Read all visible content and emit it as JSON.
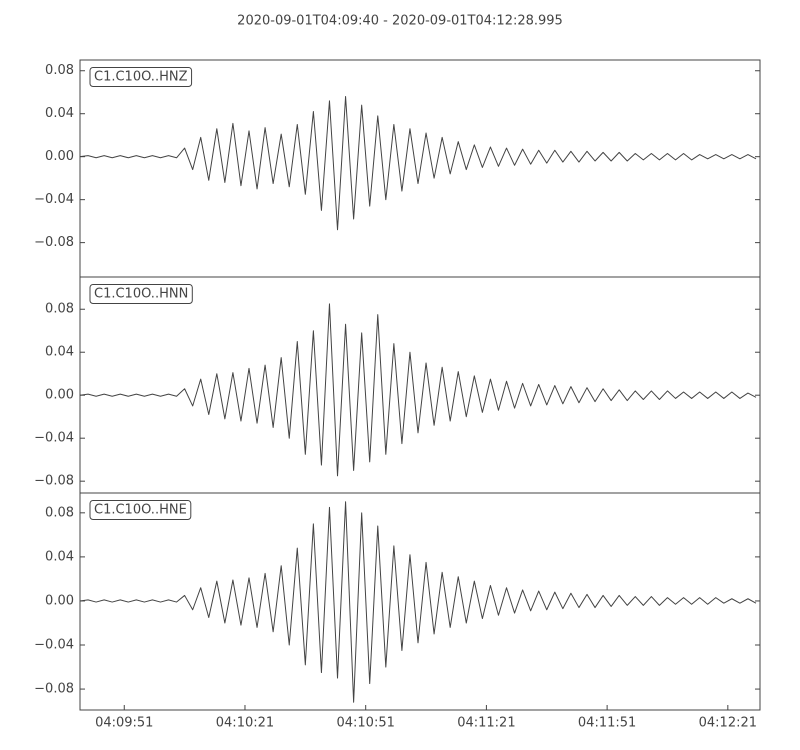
{
  "title": "2020-09-01T04:09:40  -  2020-09-01T04:12:28.995",
  "chart_data": [
    {
      "type": "line",
      "label": "C1.C10O..HNZ",
      "color": "#444444",
      "xlim": [
        0,
        168.995
      ],
      "ylim": [
        -0.112,
        0.09
      ],
      "yticks": [
        {
          "value": -0.08,
          "label": "−0.08"
        },
        {
          "value": -0.04,
          "label": "−0.04"
        },
        {
          "value": 0,
          "label": "0.00"
        },
        0.04,
        0.08
      ],
      "x": [
        0,
        2,
        4,
        6,
        8,
        10,
        12,
        14,
        16,
        18,
        20,
        22,
        24,
        26,
        28,
        30,
        32,
        34,
        36,
        38,
        40,
        42,
        44,
        46,
        48,
        50,
        52,
        54,
        56,
        58,
        60,
        62,
        64,
        66,
        68,
        70,
        72,
        74,
        76,
        78,
        80,
        82,
        84,
        86,
        88,
        90,
        92,
        94,
        96,
        98,
        100,
        102,
        104,
        106,
        108,
        110,
        112,
        114,
        116,
        118,
        120,
        122,
        124,
        126,
        128,
        130,
        132,
        134,
        136,
        138,
        140,
        142,
        144,
        146,
        148,
        150,
        152,
        154,
        156,
        158,
        160,
        162,
        164,
        166,
        168
      ],
      "values": [
        0,
        0.001,
        -0.001,
        0.001,
        -0.001,
        0.001,
        -0.001,
        0.001,
        -0.001,
        0.001,
        -0.001,
        0.001,
        -0.001,
        0.008,
        -0.012,
        0.018,
        -0.022,
        0.026,
        -0.024,
        0.031,
        -0.027,
        0.024,
        -0.03,
        0.027,
        -0.025,
        0.021,
        -0.028,
        0.03,
        -0.035,
        0.042,
        -0.05,
        0.052,
        -0.068,
        0.056,
        -0.058,
        0.048,
        -0.046,
        0.038,
        -0.04,
        0.03,
        -0.032,
        0.026,
        -0.025,
        0.022,
        -0.02,
        0.018,
        -0.016,
        0.014,
        -0.012,
        0.011,
        -0.01,
        0.009,
        -0.009,
        0.008,
        -0.008,
        0.007,
        -0.007,
        0.006,
        -0.006,
        0.006,
        -0.005,
        0.005,
        -0.005,
        0.005,
        -0.004,
        0.004,
        -0.004,
        0.004,
        -0.004,
        0.003,
        -0.003,
        0.003,
        -0.003,
        0.003,
        -0.003,
        0.003,
        -0.003,
        0.002,
        -0.002,
        0.002,
        -0.002,
        0.002,
        -0.002,
        0.002,
        -0.002
      ]
    },
    {
      "type": "line",
      "label": "C1.C10O..HNN",
      "color": "#444444",
      "xlim": [
        0,
        168.995
      ],
      "ylim": [
        -0.091,
        0.11
      ],
      "yticks": [
        {
          "value": -0.08,
          "label": "−0.08"
        },
        {
          "value": -0.04,
          "label": "−0.04"
        },
        {
          "value": 0,
          "label": "0.00"
        },
        0.04,
        0.08
      ],
      "x": [
        0,
        2,
        4,
        6,
        8,
        10,
        12,
        14,
        16,
        18,
        20,
        22,
        24,
        26,
        28,
        30,
        32,
        34,
        36,
        38,
        40,
        42,
        44,
        46,
        48,
        50,
        52,
        54,
        56,
        58,
        60,
        62,
        64,
        66,
        68,
        70,
        72,
        74,
        76,
        78,
        80,
        82,
        84,
        86,
        88,
        90,
        92,
        94,
        96,
        98,
        100,
        102,
        104,
        106,
        108,
        110,
        112,
        114,
        116,
        118,
        120,
        122,
        124,
        126,
        128,
        130,
        132,
        134,
        136,
        138,
        140,
        142,
        144,
        146,
        148,
        150,
        152,
        154,
        156,
        158,
        160,
        162,
        164,
        166,
        168
      ],
      "values": [
        0,
        0.001,
        -0.001,
        0.001,
        -0.001,
        0.001,
        -0.001,
        0.001,
        -0.001,
        0.001,
        -0.001,
        0.001,
        -0.001,
        0.006,
        -0.01,
        0.015,
        -0.018,
        0.02,
        -0.022,
        0.021,
        -0.024,
        0.025,
        -0.026,
        0.028,
        -0.03,
        0.035,
        -0.04,
        0.05,
        -0.055,
        0.06,
        -0.065,
        0.085,
        -0.075,
        0.066,
        -0.07,
        0.058,
        -0.062,
        0.075,
        -0.055,
        0.048,
        -0.045,
        0.04,
        -0.035,
        0.03,
        -0.028,
        0.026,
        -0.024,
        0.022,
        -0.02,
        0.018,
        -0.016,
        0.015,
        -0.014,
        0.013,
        -0.012,
        0.011,
        -0.01,
        0.01,
        -0.009,
        0.009,
        -0.008,
        0.008,
        -0.007,
        0.007,
        -0.006,
        0.006,
        -0.005,
        0.005,
        -0.005,
        0.004,
        -0.004,
        0.004,
        -0.004,
        0.004,
        -0.003,
        0.003,
        -0.003,
        0.003,
        -0.003,
        0.003,
        -0.003,
        0.003,
        -0.003,
        0.002,
        -0.002
      ]
    },
    {
      "type": "line",
      "label": "C1.C10O..HNE",
      "color": "#444444",
      "xlim": [
        0,
        168.995
      ],
      "ylim": [
        -0.099,
        0.098
      ],
      "yticks": [
        {
          "value": -0.08,
          "label": "−0.08"
        },
        {
          "value": -0.04,
          "label": "−0.04"
        },
        {
          "value": 0,
          "label": "0.00"
        },
        0.04,
        0.08
      ],
      "xticks": [
        {
          "value": 11,
          "label": "04:09:51"
        },
        {
          "value": 41,
          "label": "04:10:21"
        },
        {
          "value": 71,
          "label": "04:10:51"
        },
        {
          "value": 101,
          "label": "04:11:21"
        },
        {
          "value": 131,
          "label": "04:11:51"
        },
        {
          "value": 161,
          "label": "04:12:21"
        }
      ],
      "x": [
        0,
        2,
        4,
        6,
        8,
        10,
        12,
        14,
        16,
        18,
        20,
        22,
        24,
        26,
        28,
        30,
        32,
        34,
        36,
        38,
        40,
        42,
        44,
        46,
        48,
        50,
        52,
        54,
        56,
        58,
        60,
        62,
        64,
        66,
        68,
        70,
        72,
        74,
        76,
        78,
        80,
        82,
        84,
        86,
        88,
        90,
        92,
        94,
        96,
        98,
        100,
        102,
        104,
        106,
        108,
        110,
        112,
        114,
        116,
        118,
        120,
        122,
        124,
        126,
        128,
        130,
        132,
        134,
        136,
        138,
        140,
        142,
        144,
        146,
        148,
        150,
        152,
        154,
        156,
        158,
        160,
        162,
        164,
        166,
        168
      ],
      "values": [
        0,
        0.001,
        -0.001,
        0.001,
        -0.001,
        0.001,
        -0.001,
        0.001,
        -0.001,
        0.001,
        -0.001,
        0.001,
        -0.001,
        0.005,
        -0.008,
        0.012,
        -0.015,
        0.018,
        -0.02,
        0.019,
        -0.022,
        0.021,
        -0.024,
        0.025,
        -0.028,
        0.032,
        -0.04,
        0.048,
        -0.058,
        0.07,
        -0.065,
        0.085,
        -0.07,
        0.09,
        -0.092,
        0.08,
        -0.075,
        0.068,
        -0.06,
        0.05,
        -0.045,
        0.042,
        -0.038,
        0.035,
        -0.03,
        0.026,
        -0.024,
        0.022,
        -0.02,
        0.018,
        -0.016,
        0.014,
        -0.013,
        0.012,
        -0.011,
        0.01,
        -0.009,
        0.009,
        -0.008,
        0.008,
        -0.007,
        0.007,
        -0.006,
        0.006,
        -0.006,
        0.005,
        -0.005,
        0.005,
        -0.004,
        0.004,
        -0.004,
        0.004,
        -0.004,
        0.003,
        -0.003,
        0.003,
        -0.003,
        0.003,
        -0.003,
        0.003,
        -0.002,
        0.002,
        -0.002,
        0.002,
        -0.002
      ]
    }
  ]
}
